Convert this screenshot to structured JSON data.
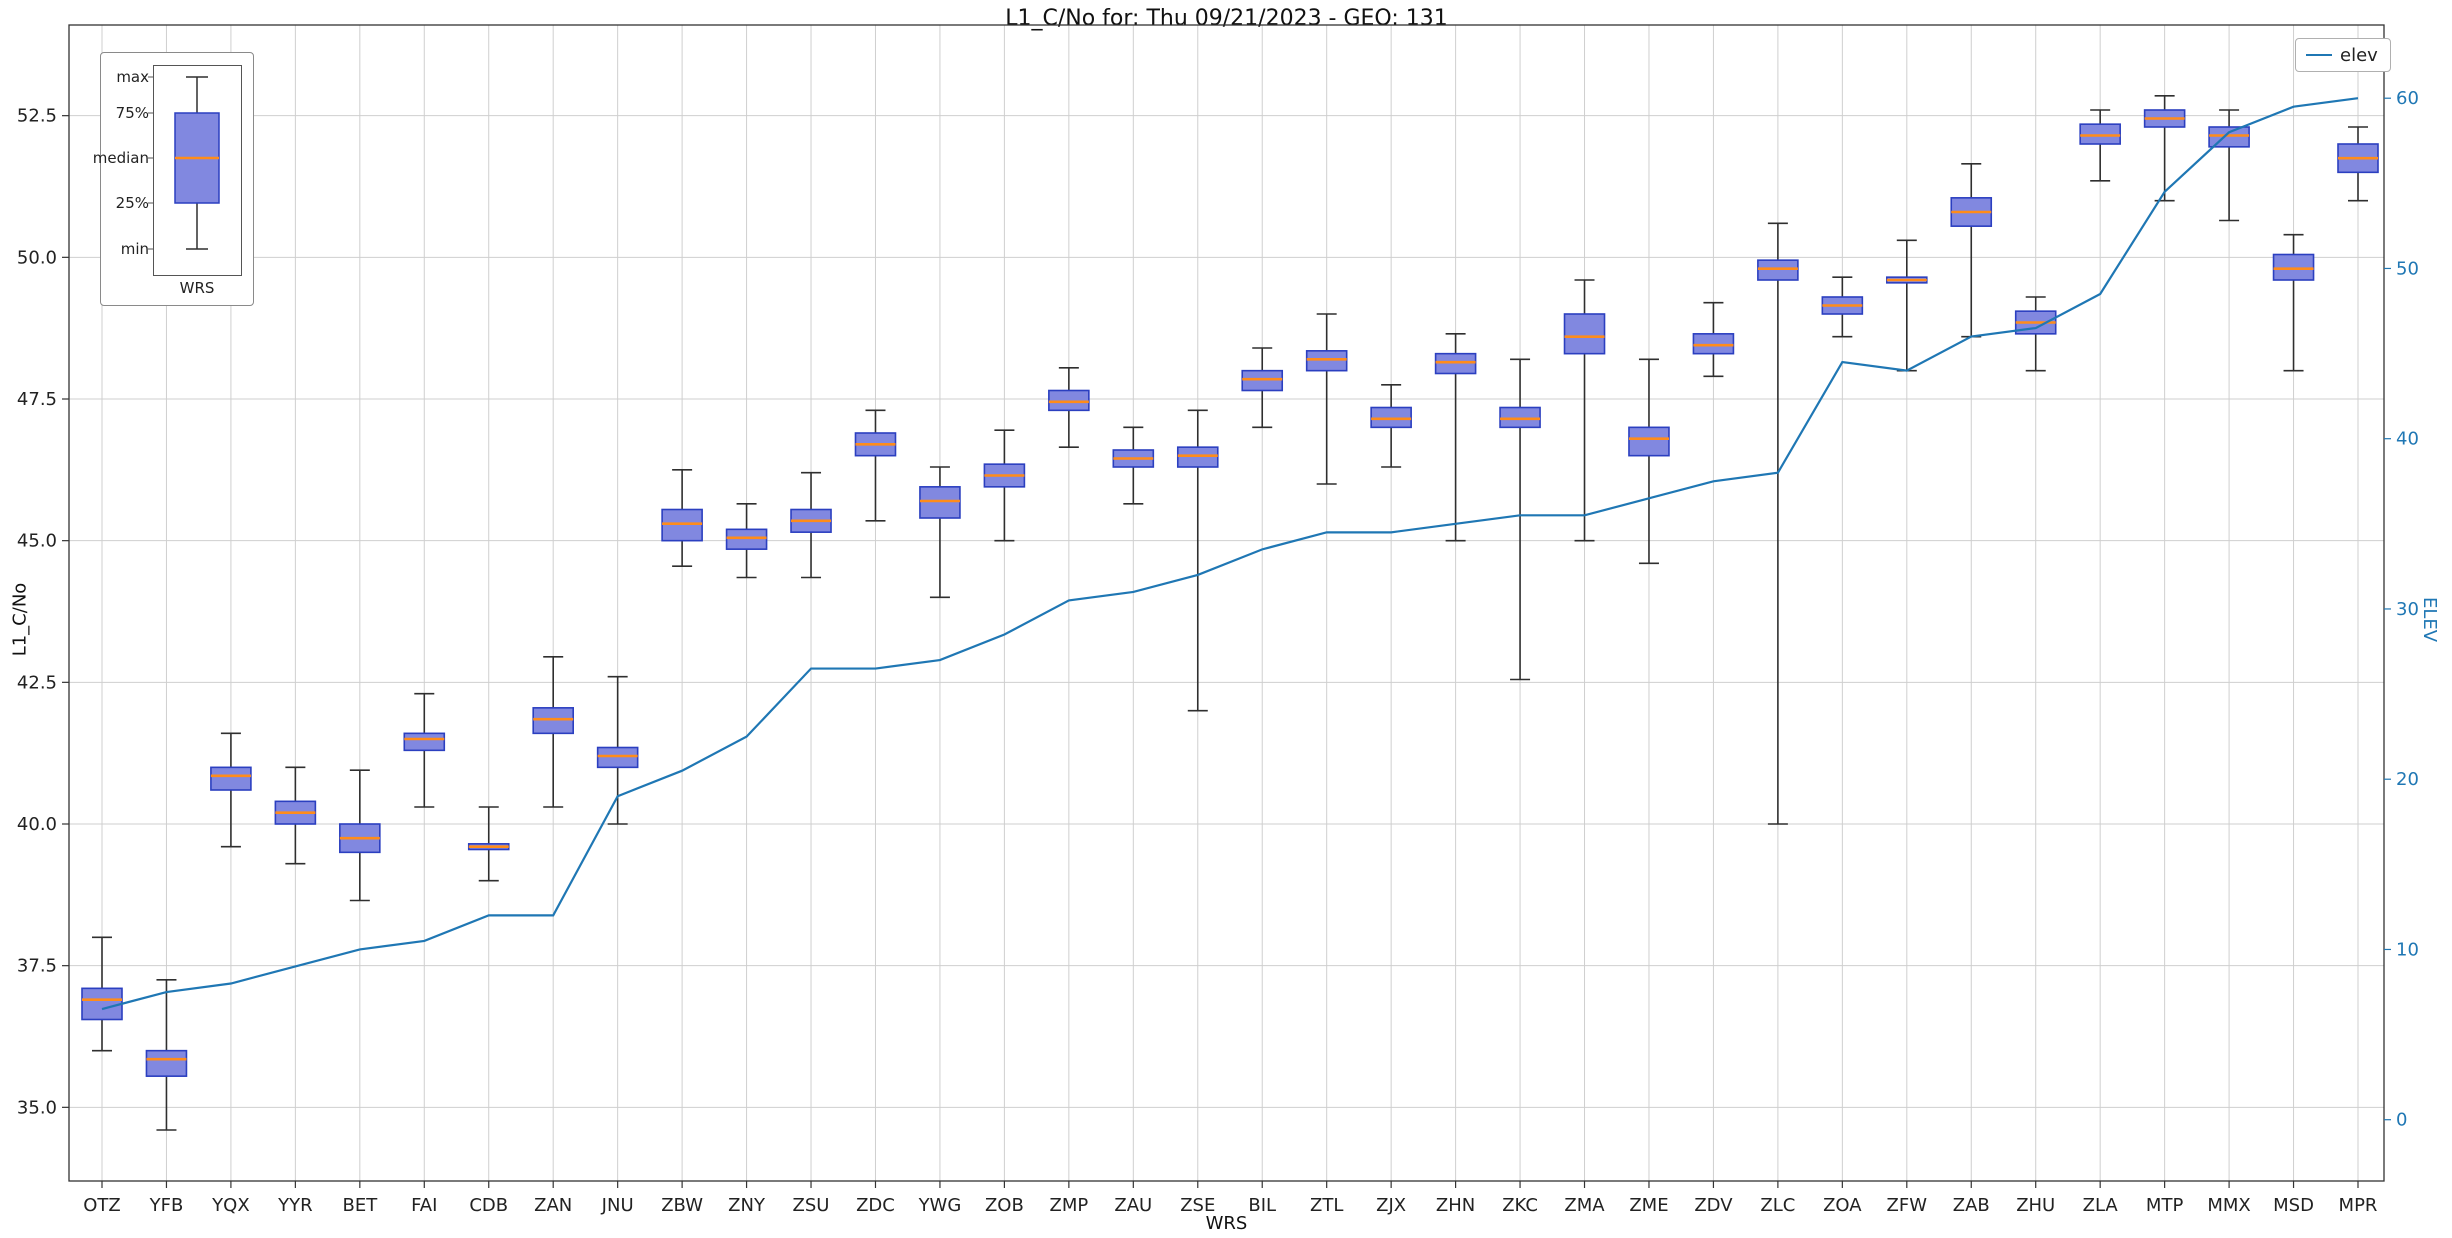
{
  "title": "L1_C/No for: Thu 09/21/2023 - GEO: 131",
  "legend": {
    "elev_label": "elev",
    "position": "upper right"
  },
  "inset": {
    "labels": [
      "max",
      "75%",
      "median",
      "25%",
      "min"
    ],
    "xlabel": "WRS"
  },
  "axes": {
    "left_label": "L1_C/No",
    "right_label": "ELEV",
    "x_label": "WRS",
    "left_ticks": [
      35.0,
      37.5,
      40.0,
      42.5,
      45.0,
      47.5,
      50.0,
      52.5
    ],
    "right_ticks": [
      0,
      10,
      20,
      30,
      40,
      50,
      60
    ],
    "left_range": [
      33.7,
      54.1
    ],
    "right_range": [
      -3.6,
      64.3
    ],
    "grid": true
  },
  "chart_data": {
    "type": "boxplot+line",
    "title": "L1_C/No for: Thu 09/21/2023 - GEO: 131",
    "xlabel": "WRS",
    "ylabel_left": "L1_C/No",
    "ylabel_right": "ELEV",
    "categories": [
      "OTZ",
      "YFB",
      "YQX",
      "YYR",
      "BET",
      "FAI",
      "CDB",
      "ZAN",
      "JNU",
      "ZBW",
      "ZNY",
      "ZSU",
      "ZDC",
      "YWG",
      "ZOB",
      "ZMP",
      "ZAU",
      "ZSE",
      "BIL",
      "ZTL",
      "ZJX",
      "ZHN",
      "ZKC",
      "ZMA",
      "ZME",
      "ZDV",
      "ZLC",
      "ZOA",
      "ZFW",
      "ZAB",
      "ZHU",
      "ZLA",
      "MTP",
      "MMX",
      "MSD",
      "MPR"
    ],
    "boxes": [
      {
        "min": 36.0,
        "q1": 36.55,
        "med": 36.9,
        "q3": 37.1,
        "max": 38.0
      },
      {
        "min": 34.6,
        "q1": 35.55,
        "med": 35.85,
        "q3": 36.0,
        "max": 37.25
      },
      {
        "min": 39.6,
        "q1": 40.6,
        "med": 40.85,
        "q3": 41.0,
        "max": 41.6
      },
      {
        "min": 39.3,
        "q1": 40.0,
        "med": 40.2,
        "q3": 40.4,
        "max": 41.0
      },
      {
        "min": 38.65,
        "q1": 39.5,
        "med": 39.75,
        "q3": 40.0,
        "max": 40.95
      },
      {
        "min": 40.3,
        "q1": 41.3,
        "med": 41.5,
        "q3": 41.6,
        "max": 42.3
      },
      {
        "min": 39.0,
        "q1": 39.55,
        "med": 39.6,
        "q3": 39.65,
        "max": 40.3
      },
      {
        "min": 40.3,
        "q1": 41.6,
        "med": 41.85,
        "q3": 42.05,
        "max": 42.95
      },
      {
        "min": 40.0,
        "q1": 41.0,
        "med": 41.2,
        "q3": 41.35,
        "max": 42.6
      },
      {
        "min": 44.55,
        "q1": 45.0,
        "med": 45.3,
        "q3": 45.55,
        "max": 46.25
      },
      {
        "min": 44.35,
        "q1": 44.85,
        "med": 45.05,
        "q3": 45.2,
        "max": 45.65
      },
      {
        "min": 44.35,
        "q1": 45.15,
        "med": 45.35,
        "q3": 45.55,
        "max": 46.2
      },
      {
        "min": 45.35,
        "q1": 46.5,
        "med": 46.7,
        "q3": 46.9,
        "max": 47.3
      },
      {
        "min": 44.0,
        "q1": 45.4,
        "med": 45.7,
        "q3": 45.95,
        "max": 46.3
      },
      {
        "min": 45.0,
        "q1": 45.95,
        "med": 46.15,
        "q3": 46.35,
        "max": 46.95
      },
      {
        "min": 46.65,
        "q1": 47.3,
        "med": 47.45,
        "q3": 47.65,
        "max": 48.05
      },
      {
        "min": 45.65,
        "q1": 46.3,
        "med": 46.45,
        "q3": 46.6,
        "max": 47.0
      },
      {
        "min": 42.0,
        "q1": 46.3,
        "med": 46.5,
        "q3": 46.65,
        "max": 47.3
      },
      {
        "min": 47.0,
        "q1": 47.65,
        "med": 47.85,
        "q3": 48.0,
        "max": 48.4
      },
      {
        "min": 46.0,
        "q1": 48.0,
        "med": 48.2,
        "q3": 48.35,
        "max": 49.0
      },
      {
        "min": 46.3,
        "q1": 47.0,
        "med": 47.15,
        "q3": 47.35,
        "max": 47.75
      },
      {
        "min": 45.0,
        "q1": 47.95,
        "med": 48.15,
        "q3": 48.3,
        "max": 48.65
      },
      {
        "min": 42.55,
        "q1": 47.0,
        "med": 47.15,
        "q3": 47.35,
        "max": 48.2
      },
      {
        "min": 45.0,
        "q1": 48.3,
        "med": 48.6,
        "q3": 49.0,
        "max": 49.6
      },
      {
        "min": 44.6,
        "q1": 46.5,
        "med": 46.8,
        "q3": 47.0,
        "max": 48.2
      },
      {
        "min": 47.9,
        "q1": 48.3,
        "med": 48.45,
        "q3": 48.65,
        "max": 49.2
      },
      {
        "min": 40.0,
        "q1": 49.6,
        "med": 49.8,
        "q3": 49.95,
        "max": 50.6
      },
      {
        "min": 48.6,
        "q1": 49.0,
        "med": 49.15,
        "q3": 49.3,
        "max": 49.65
      },
      {
        "min": 48.0,
        "q1": 49.55,
        "med": 49.6,
        "q3": 49.65,
        "max": 50.3
      },
      {
        "min": 48.6,
        "q1": 50.55,
        "med": 50.8,
        "q3": 51.05,
        "max": 51.65
      },
      {
        "min": 48.0,
        "q1": 48.65,
        "med": 48.85,
        "q3": 49.05,
        "max": 49.3
      },
      {
        "min": 51.35,
        "q1": 52.0,
        "med": 52.15,
        "q3": 52.35,
        "max": 52.6
      },
      {
        "min": 51.0,
        "q1": 52.3,
        "med": 52.45,
        "q3": 52.6,
        "max": 52.85
      },
      {
        "min": 50.65,
        "q1": 51.95,
        "med": 52.15,
        "q3": 52.3,
        "max": 52.6
      },
      {
        "min": 48.0,
        "q1": 49.6,
        "med": 49.8,
        "q3": 50.05,
        "max": 50.4
      },
      {
        "min": 51.0,
        "q1": 51.5,
        "med": 51.75,
        "q3": 52.0,
        "max": 52.3
      }
    ],
    "series": [
      {
        "name": "elev",
        "axis": "right",
        "values": [
          6.5,
          7.5,
          8,
          9,
          10,
          10.5,
          12,
          12,
          19,
          20.5,
          22.5,
          26.5,
          26.5,
          27,
          28.5,
          30.5,
          31,
          32,
          33.5,
          34.5,
          34.5,
          35,
          35.5,
          35.5,
          36.5,
          37.5,
          38,
          44.5,
          44,
          46,
          46.5,
          48.5,
          54.5,
          58,
          59.5,
          60
        ]
      }
    ],
    "colors": {
      "box_fill": "#8188e0",
      "box_edge": "#2b3fc0",
      "median": "#ff8c1a",
      "whisker": "#2f2f2f",
      "line": "#1f77b4",
      "grid": "#cfcfcf",
      "frame": "#333333"
    }
  }
}
